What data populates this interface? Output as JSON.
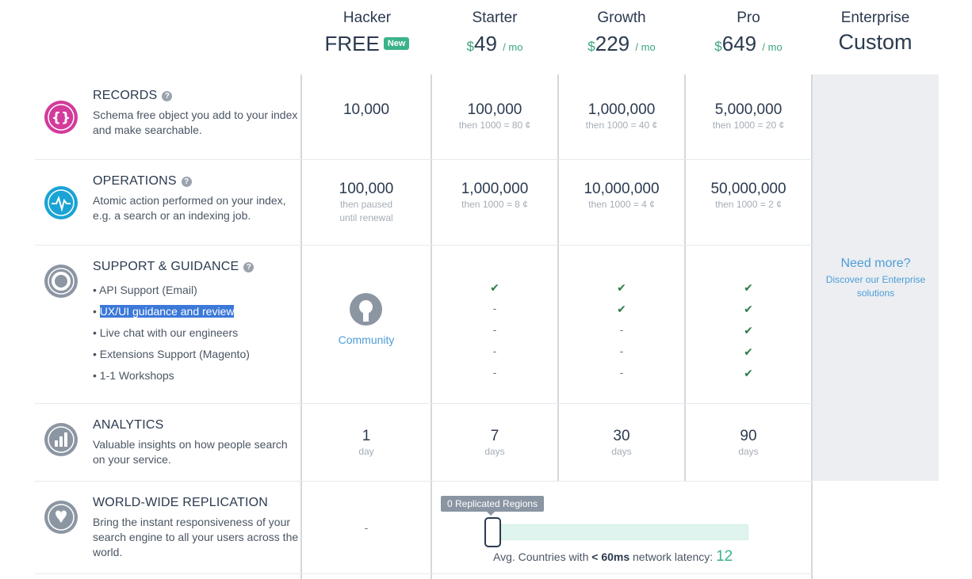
{
  "plans": [
    {
      "name": "Hacker",
      "price": "FREE",
      "badge": "New"
    },
    {
      "name": "Starter",
      "currency": "$",
      "amount": "49",
      "period": "/ mo"
    },
    {
      "name": "Growth",
      "currency": "$",
      "amount": "229",
      "period": "/ mo"
    },
    {
      "name": "Pro",
      "currency": "$",
      "amount": "649",
      "period": "/ mo"
    },
    {
      "name": "Enterprise",
      "price": "Custom"
    }
  ],
  "features": {
    "records": {
      "title": "RECORDS",
      "help": "?",
      "desc": "Schema free object you add to your index and make searchable.",
      "values": [
        {
          "main": "10,000",
          "sub": ""
        },
        {
          "main": "100,000",
          "sub": "then 1000 = 80 ¢"
        },
        {
          "main": "1,000,000",
          "sub": "then 1000 = 40 ¢"
        },
        {
          "main": "5,000,000",
          "sub": "then 1000 = 20 ¢"
        }
      ]
    },
    "operations": {
      "title": "OPERATIONS",
      "help": "?",
      "desc": "Atomic action performed on your index, e.g. a search or an indexing job.",
      "values": [
        {
          "main": "100,000",
          "sub1": "then paused",
          "sub2": "until renewal"
        },
        {
          "main": "1,000,000",
          "sub1": "then 1000 = 8 ¢"
        },
        {
          "main": "10,000,000",
          "sub1": "then 1000 = 4 ¢"
        },
        {
          "main": "50,000,000",
          "sub1": "then 1000 = 2 ¢"
        }
      ]
    },
    "support": {
      "title": "SUPPORT & GUIDANCE",
      "help": "?",
      "items": [
        "• API Support (Email)",
        "UX/UI guidance and review",
        "• Live chat with our engineers",
        "• Extensions Support (Magento)",
        "• 1-1 Workshops"
      ],
      "bullet": "• ",
      "community": "Community",
      "check": "✔",
      "dash": "-"
    },
    "analytics": {
      "title": "ANALYTICS",
      "desc": "Valuable insights on how people search on your service.",
      "values": [
        {
          "main": "1",
          "sub": "day"
        },
        {
          "main": "7",
          "sub": "days"
        },
        {
          "main": "30",
          "sub": "days"
        },
        {
          "main": "90",
          "sub": "days"
        }
      ]
    },
    "replication": {
      "title": "WORLD-WIDE REPLICATION",
      "desc": "Bring the instant responsiveness of your search engine to all your users across the world.",
      "hacker_value": "-",
      "tooltip": "0 Replicated Regions",
      "latency_prefix": "Avg. Countries with ",
      "latency_bold": "< 60ms",
      "latency_suffix": " network latency: ",
      "latency_count": "12",
      "slider_value": 0
    }
  },
  "enterprise": {
    "need_more": "Need more?",
    "discover_line1": "Discover our Enterprise",
    "discover_line2": "solutions"
  },
  "icons": {
    "records": "braces-icon",
    "operations": "pulse-icon",
    "support": "lifebuoy-icon",
    "analytics": "bar-chart-icon",
    "replication": "map-pins-icon"
  },
  "colors": {
    "records": "#d33b9a",
    "operations": "#1aa3d4",
    "gray_icon": "#8c96a3",
    "accent_green": "#3ab38a",
    "link_blue": "#4d9ed6"
  }
}
